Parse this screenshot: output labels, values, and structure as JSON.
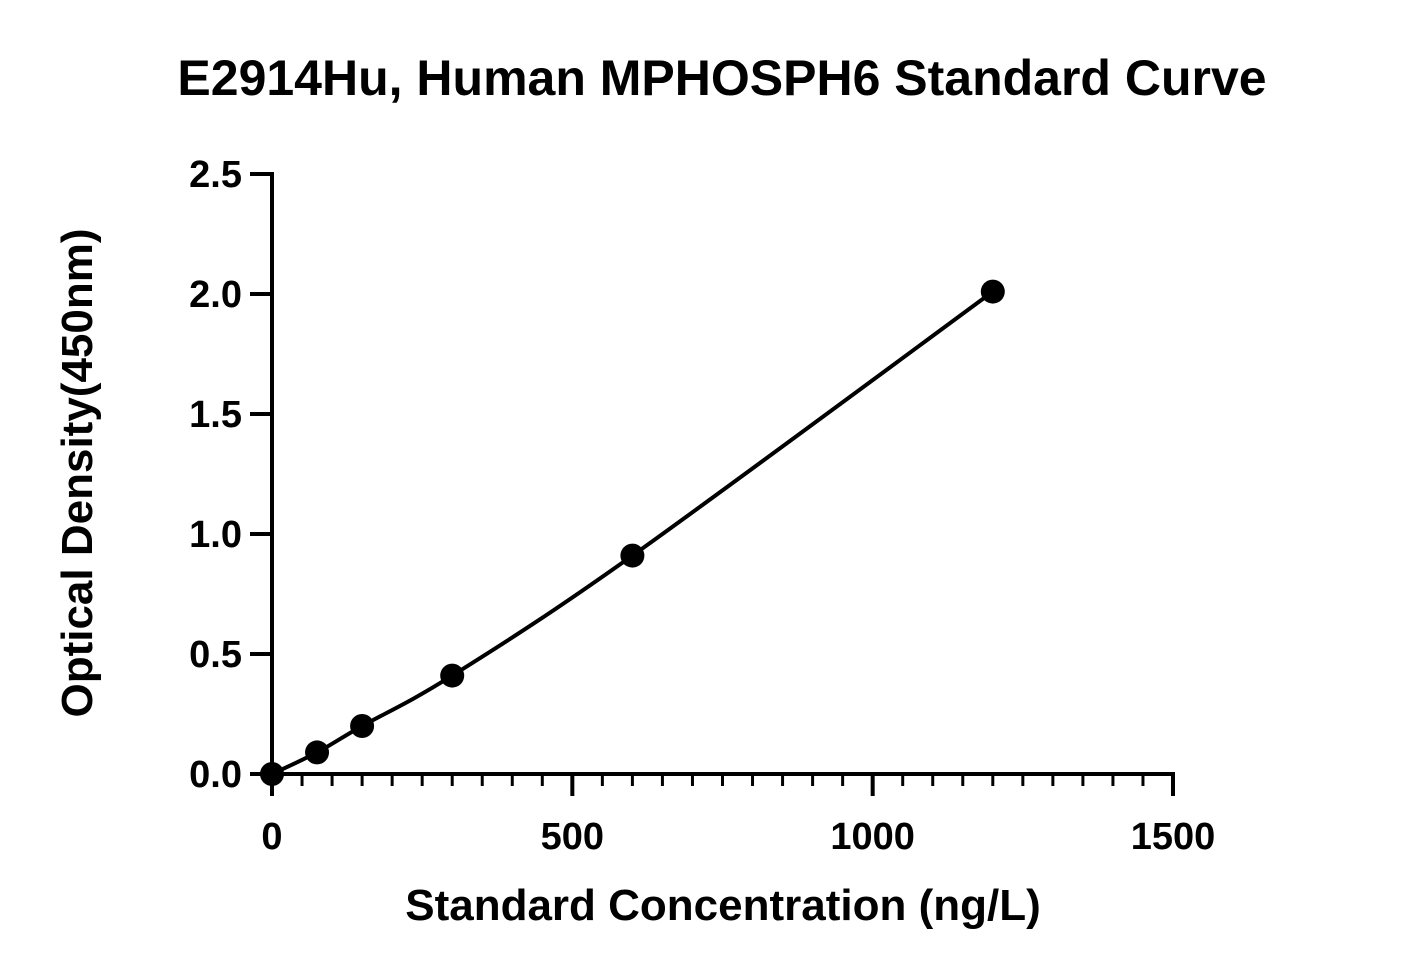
{
  "chart_data": {
    "type": "line",
    "title": "E2914Hu, Human MPHOSPH6 Standard Curve",
    "xlabel": "Standard Concentration (ng/L)",
    "ylabel": "Optical Density(450nm)",
    "xlim": [
      0,
      1500
    ],
    "ylim": [
      0,
      2.5
    ],
    "x_ticks": [
      0,
      500,
      1000,
      1500
    ],
    "x_tick_labels": [
      "0",
      "500",
      "1000",
      "1500"
    ],
    "x_minor_step": 50,
    "y_ticks": [
      0,
      0.5,
      1.0,
      1.5,
      2.0,
      2.5
    ],
    "y_tick_labels": [
      "0.0",
      "0.5",
      "1.0",
      "1.5",
      "2.0",
      "2.5"
    ],
    "grid": false,
    "legend": "none",
    "series": [
      {
        "x": [
          0,
          75,
          150,
          300,
          600,
          1200
        ],
        "y": [
          0.0,
          0.09,
          0.2,
          0.41,
          0.91,
          2.01
        ],
        "color": "#000000",
        "marker": "circle"
      }
    ]
  }
}
